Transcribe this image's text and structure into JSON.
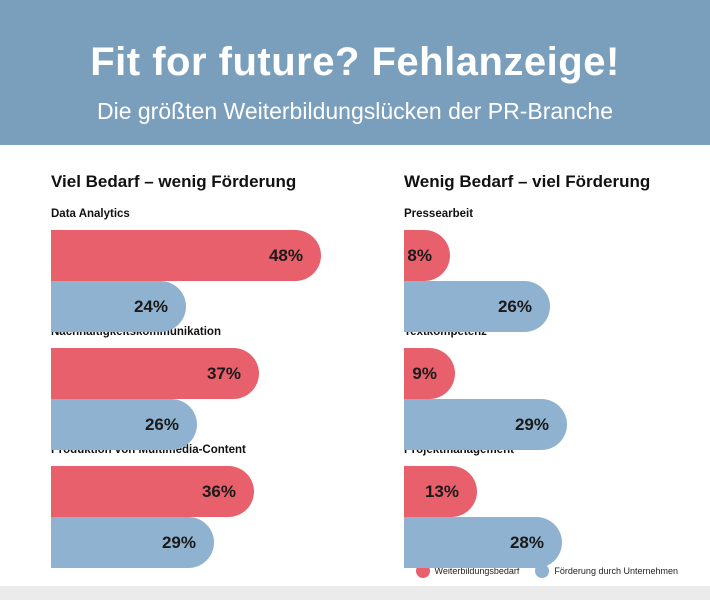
{
  "header": {
    "title": "Fit for future? Fehlanzeige!",
    "subtitle": "Die größten Weiterbildungslücken der PR-Branche"
  },
  "colors": {
    "header_bg": "#7a9fbd",
    "bedarf": "#e8606c",
    "foerderung": "#8eb2cf"
  },
  "legend": {
    "bedarf": "Weiterbildungsbedarf",
    "foerderung": "Förderung durch Unternehmen"
  },
  "chart_data": [
    {
      "type": "bar",
      "title": "Viel Bedarf – wenig Förderung",
      "categories": [
        "Data Analytics",
        "Nachhaltigkeitskommunikation",
        "Produktion von Multimedia-Content"
      ],
      "series": [
        {
          "name": "Weiterbildungsbedarf",
          "values": [
            48,
            37,
            36
          ],
          "labels": [
            "48%",
            "37%",
            "36%"
          ]
        },
        {
          "name": "Förderung durch Unternehmen",
          "values": [
            24,
            26,
            29
          ],
          "labels": [
            "24%",
            "26%",
            "29%"
          ]
        }
      ],
      "unit": "%",
      "xlim": [
        0,
        48
      ]
    },
    {
      "type": "bar",
      "title": "Wenig Bedarf – viel Förderung",
      "categories": [
        "Pressearbeit",
        "Textkompetenz",
        "Projektmanagement"
      ],
      "series": [
        {
          "name": "Weiterbildungsbedarf",
          "values": [
            8,
            9,
            13
          ],
          "labels": [
            "8%",
            "9%",
            "13%"
          ]
        },
        {
          "name": "Förderung durch Unternehmen",
          "values": [
            26,
            29,
            28
          ],
          "labels": [
            "26%",
            "29%",
            "28%"
          ]
        }
      ],
      "unit": "%",
      "xlim": [
        0,
        48
      ]
    }
  ]
}
